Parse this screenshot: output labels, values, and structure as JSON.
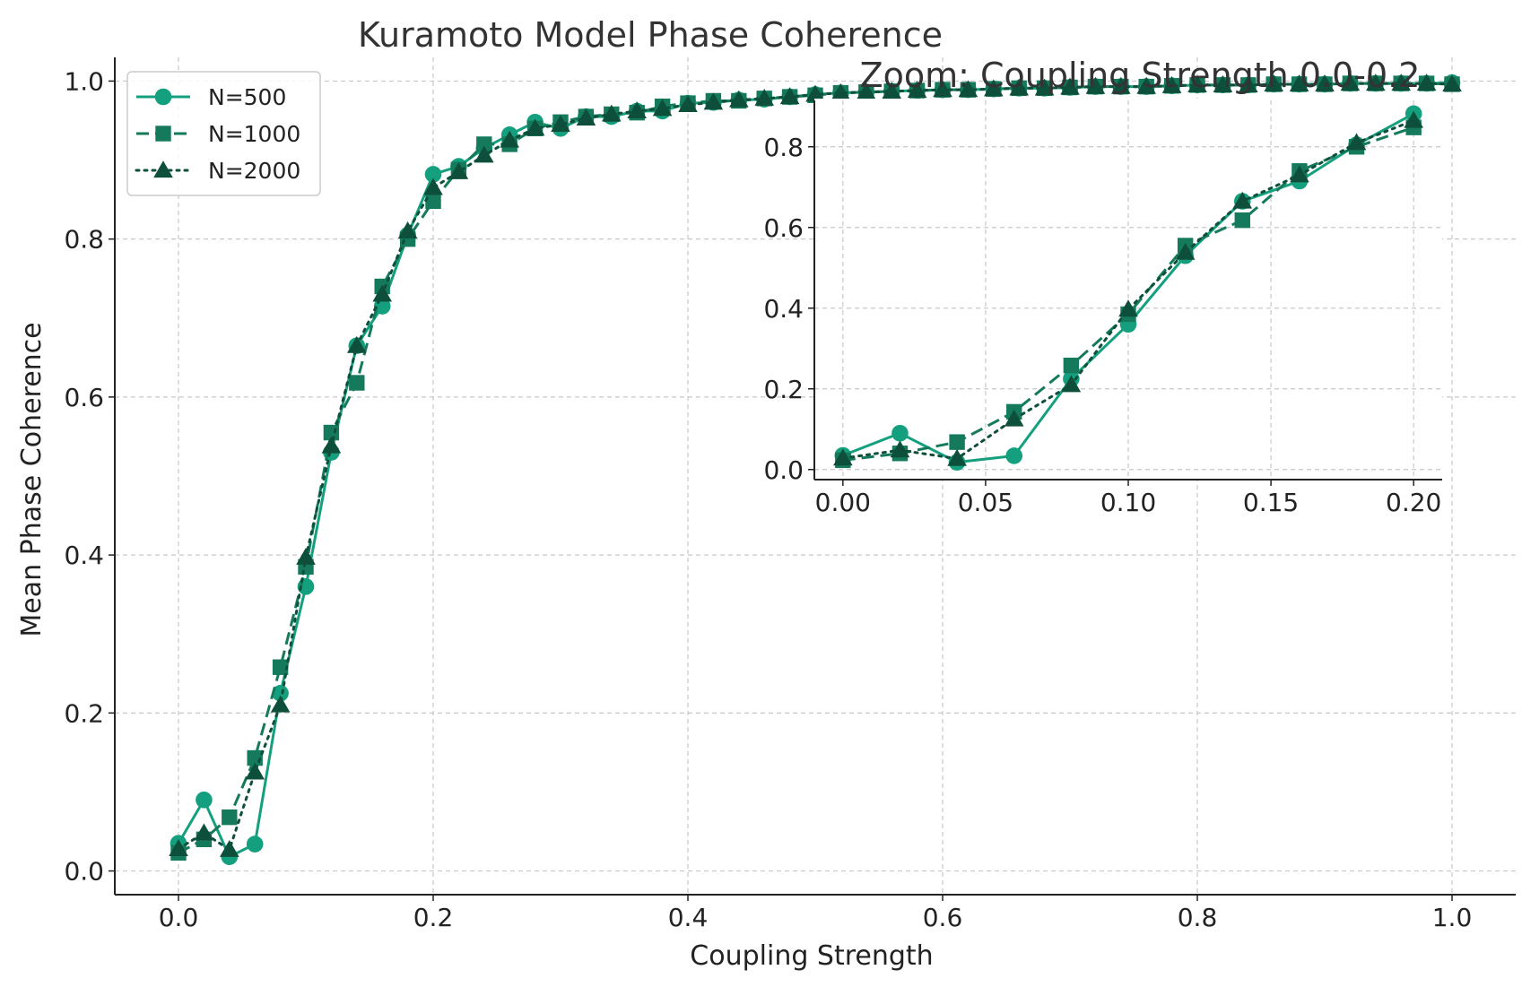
{
  "chart_data": [
    {
      "type": "line",
      "title": "Kuramoto Model Phase Coherence",
      "xlabel": "Coupling Strength",
      "ylabel": "Mean Phase Coherence",
      "xlim": [
        -0.05,
        1.05
      ],
      "ylim": [
        -0.03,
        1.03
      ],
      "xticks": [
        "0.0",
        "0.2",
        "0.4",
        "0.6",
        "0.8",
        "1.0"
      ],
      "yticks": [
        "0.0",
        "0.2",
        "0.4",
        "0.6",
        "0.8",
        "1.0"
      ],
      "grid": true,
      "legend": "upper left",
      "x": [
        0.0,
        0.02,
        0.04,
        0.06,
        0.08,
        0.1,
        0.12,
        0.14,
        0.16,
        0.18,
        0.2,
        0.22,
        0.24,
        0.26,
        0.28,
        0.3,
        0.32,
        0.34,
        0.36,
        0.38,
        0.4,
        0.42,
        0.44,
        0.46,
        0.48,
        0.5,
        0.52,
        0.54,
        0.56,
        0.58,
        0.6,
        0.62,
        0.64,
        0.66,
        0.68,
        0.7,
        0.72,
        0.74,
        0.76,
        0.78,
        0.8,
        0.82,
        0.84,
        0.86,
        0.88,
        0.9,
        0.92,
        0.94,
        0.96,
        0.98,
        1.0
      ],
      "series": [
        {
          "name": "N=500",
          "color": "#14a07e",
          "marker": "circle",
          "linestyle": "solid",
          "values": [
            0.035,
            0.09,
            0.018,
            0.034,
            0.225,
            0.36,
            0.53,
            0.665,
            0.715,
            0.805,
            0.882,
            0.892,
            0.915,
            0.932,
            0.948,
            0.94,
            0.955,
            0.955,
            0.962,
            0.962,
            0.972,
            0.973,
            0.976,
            0.977,
            0.98,
            0.983,
            0.985,
            0.986,
            0.987,
            0.988,
            0.989,
            0.989,
            0.99,
            0.991,
            0.991,
            0.992,
            0.993,
            0.993,
            0.993,
            0.994,
            0.995,
            0.995,
            0.995,
            0.996,
            0.996,
            0.996,
            0.997,
            0.997,
            0.997,
            0.997,
            0.998
          ]
        },
        {
          "name": "N=1000",
          "color": "#157a5c",
          "marker": "square",
          "linestyle": "dashed",
          "values": [
            0.023,
            0.04,
            0.068,
            0.143,
            0.258,
            0.385,
            0.555,
            0.618,
            0.74,
            0.8,
            0.848,
            0.888,
            0.92,
            0.92,
            0.94,
            0.948,
            0.955,
            0.958,
            0.96,
            0.968,
            0.972,
            0.975,
            0.975,
            0.978,
            0.98,
            0.982,
            0.985,
            0.986,
            0.987,
            0.988,
            0.989,
            0.989,
            0.99,
            0.991,
            0.991,
            0.992,
            0.993,
            0.993,
            0.993,
            0.994,
            0.995,
            0.995,
            0.995,
            0.996,
            0.996,
            0.996,
            0.997,
            0.997,
            0.997,
            0.997,
            0.996
          ]
        },
        {
          "name": "N=2000",
          "color": "#0d4f3a",
          "marker": "triangle",
          "linestyle": "dotted",
          "values": [
            0.028,
            0.048,
            0.027,
            0.125,
            0.21,
            0.397,
            0.538,
            0.665,
            0.73,
            0.81,
            0.865,
            0.885,
            0.906,
            0.925,
            0.94,
            0.945,
            0.953,
            0.958,
            0.962,
            0.965,
            0.97,
            0.973,
            0.976,
            0.978,
            0.98,
            0.983,
            0.985,
            0.986,
            0.987,
            0.988,
            0.989,
            0.989,
            0.99,
            0.991,
            0.991,
            0.992,
            0.993,
            0.993,
            0.993,
            0.994,
            0.995,
            0.995,
            0.995,
            0.996,
            0.996,
            0.996,
            0.997,
            0.997,
            0.997,
            0.997,
            0.996
          ]
        }
      ]
    },
    {
      "type": "line",
      "title": "Zoom: Coupling Strength 0.0-0.2",
      "xlim": [
        -0.01,
        0.21
      ],
      "ylim": [
        -0.025,
        0.915
      ],
      "xticks": [
        "0.00",
        "0.05",
        "0.10",
        "0.15",
        "0.20"
      ],
      "yticks": [
        "0.0",
        "0.2",
        "0.4",
        "0.6",
        "0.8"
      ],
      "grid": true,
      "x": [
        0.0,
        0.02,
        0.04,
        0.06,
        0.08,
        0.1,
        0.12,
        0.14,
        0.16,
        0.18,
        0.2
      ],
      "series": [
        {
          "color": "#14a07e",
          "marker": "circle",
          "linestyle": "solid",
          "values": [
            0.035,
            0.09,
            0.018,
            0.034,
            0.225,
            0.36,
            0.53,
            0.665,
            0.715,
            0.805,
            0.882
          ]
        },
        {
          "color": "#157a5c",
          "marker": "square",
          "linestyle": "dashed",
          "values": [
            0.023,
            0.04,
            0.068,
            0.143,
            0.258,
            0.385,
            0.555,
            0.618,
            0.74,
            0.8,
            0.848
          ]
        },
        {
          "color": "#0d4f3a",
          "marker": "triangle",
          "linestyle": "dotted",
          "values": [
            0.028,
            0.048,
            0.027,
            0.125,
            0.21,
            0.397,
            0.538,
            0.665,
            0.73,
            0.81,
            0.865
          ]
        }
      ]
    }
  ]
}
